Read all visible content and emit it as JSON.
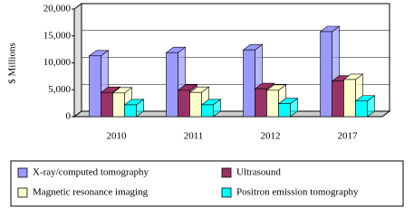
{
  "chart_data": {
    "type": "bar3d",
    "y_label": "$ Millions",
    "categories": [
      "2010",
      "2011",
      "2012",
      "2017"
    ],
    "series": [
      {
        "name": "X-ray/computed tomography",
        "color": "#9999ff",
        "values": [
          11300,
          11900,
          12400,
          15800
        ]
      },
      {
        "name": "Ultrasound",
        "color": "#993366",
        "values": [
          4500,
          4900,
          5200,
          6600
        ]
      },
      {
        "name": "Magnetic resonance imaging",
        "color": "#ffffcc",
        "values": [
          4400,
          4500,
          4900,
          6900
        ]
      },
      {
        "name": "Positron emission tomography",
        "color": "#00ffff",
        "values": [
          2200,
          2200,
          2400,
          2900
        ]
      }
    ],
    "ylim": [
      0,
      20000
    ],
    "yticks": [
      0,
      {
        "value": 5000,
        "label": "5,000"
      },
      {
        "value": 10000,
        "label": "10,000"
      },
      {
        "value": 15000,
        "label": "15,000"
      },
      {
        "value": 20000,
        "label": "20,000"
      }
    ],
    "grid": true
  }
}
